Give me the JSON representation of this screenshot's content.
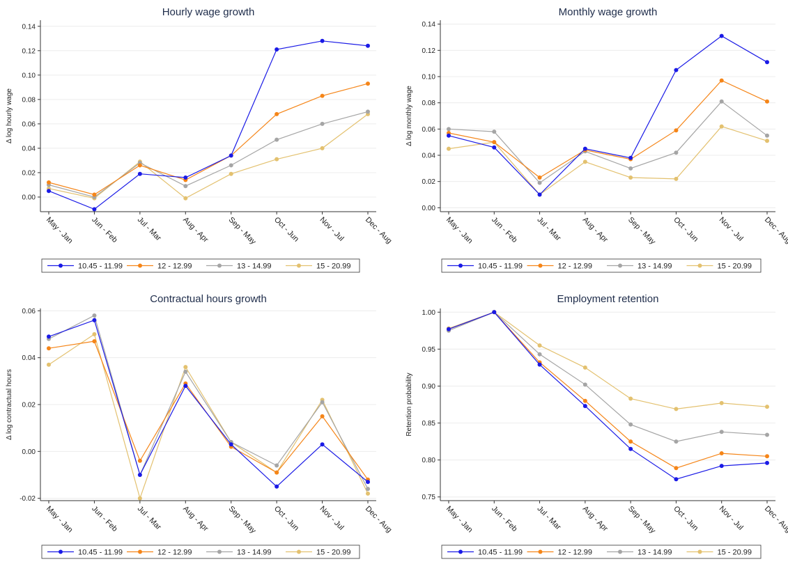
{
  "chart_data": [
    {
      "type": "line",
      "title": "Hourly wage growth",
      "xlabel": "",
      "ylabel": "Δ log hourly wage",
      "categories": [
        "May - Jan",
        "Jun - Feb",
        "Jul - Mar",
        "Aug - Apr",
        "Sep - May",
        "Oct - Jun",
        "Nov - Jul",
        "Dec - Aug"
      ],
      "ylim": [
        -0.012,
        0.145
      ],
      "yticks": [
        0.0,
        0.02,
        0.04,
        0.06,
        0.08,
        0.1,
        0.12,
        0.14
      ],
      "ytick_labels": [
        "0.00",
        "0.02",
        "0.04",
        "0.06",
        "0.08",
        "0.10",
        "0.12",
        "0.14"
      ],
      "grid": true,
      "legend": "bottom",
      "series": [
        {
          "name": "10.45 - 11.99",
          "color": "#1a1ae6",
          "values": [
            0.005,
            -0.01,
            0.019,
            0.016,
            0.034,
            0.121,
            0.128,
            0.124
          ]
        },
        {
          "name": "12 - 12.99",
          "color": "#f58518",
          "values": [
            0.012,
            0.002,
            0.026,
            0.014,
            0.034,
            0.068,
            0.083,
            0.093
          ]
        },
        {
          "name": "13 - 14.99",
          "color": "#a5a5a5",
          "values": [
            0.01,
            0.0,
            0.028,
            0.009,
            0.026,
            0.047,
            0.06,
            0.07
          ]
        },
        {
          "name": "15 - 20.99",
          "color": "#e3c16f",
          "values": [
            0.007,
            -0.001,
            0.029,
            -0.001,
            0.019,
            0.031,
            0.04,
            0.068
          ]
        }
      ]
    },
    {
      "type": "line",
      "title": "Monthly wage growth",
      "xlabel": "",
      "ylabel": "Δ log monthly wage",
      "categories": [
        "May - Jan",
        "Jun - Feb",
        "Jul - Mar",
        "Aug - Apr",
        "Sep - May",
        "Oct - Jun",
        "Nov - Jul",
        "Dec - Aug"
      ],
      "ylim": [
        -0.003,
        0.143
      ],
      "yticks": [
        0.0,
        0.02,
        0.04,
        0.06,
        0.08,
        0.1,
        0.12,
        0.14
      ],
      "ytick_labels": [
        "0.00",
        "0.02",
        "0.04",
        "0.06",
        "0.08",
        "0.10",
        "0.12",
        "0.14"
      ],
      "grid": true,
      "legend": "bottom",
      "series": [
        {
          "name": "10.45 - 11.99",
          "color": "#1a1ae6",
          "values": [
            0.055,
            0.046,
            0.01,
            0.045,
            0.038,
            0.105,
            0.131,
            0.111
          ]
        },
        {
          "name": "12 - 12.99",
          "color": "#f58518",
          "values": [
            0.057,
            0.05,
            0.023,
            0.044,
            0.037,
            0.059,
            0.097,
            0.081
          ]
        },
        {
          "name": "13 - 14.99",
          "color": "#a5a5a5",
          "values": [
            0.06,
            0.058,
            0.019,
            0.043,
            0.03,
            0.042,
            0.081,
            0.055
          ]
        },
        {
          "name": "15 - 20.99",
          "color": "#e3c16f",
          "values": [
            0.045,
            0.05,
            0.01,
            0.035,
            0.023,
            0.022,
            0.062,
            0.051
          ]
        }
      ]
    },
    {
      "type": "line",
      "title": "Contractual hours growth",
      "xlabel": "",
      "ylabel": "Δ log contractual hours",
      "categories": [
        "May - Jan",
        "Jun - Feb",
        "Jul - Mar",
        "Aug - Apr",
        "Sep - May",
        "Oct - Jun",
        "Nov - Jul",
        "Dec - Aug"
      ],
      "ylim": [
        -0.021,
        0.061
      ],
      "yticks": [
        -0.02,
        0.0,
        0.02,
        0.04,
        0.06
      ],
      "ytick_labels": [
        "-0.02",
        "0.00",
        "0.02",
        "0.04",
        "0.06"
      ],
      "grid": true,
      "legend": "bottom",
      "series": [
        {
          "name": "10.45 - 11.99",
          "color": "#1a1ae6",
          "values": [
            0.049,
            0.056,
            -0.01,
            0.028,
            0.003,
            -0.015,
            0.003,
            -0.013
          ]
        },
        {
          "name": "12 - 12.99",
          "color": "#f58518",
          "values": [
            0.044,
            0.047,
            -0.004,
            0.029,
            0.002,
            -0.009,
            0.015,
            -0.012
          ]
        },
        {
          "name": "13 - 14.99",
          "color": "#a5a5a5",
          "values": [
            0.048,
            0.058,
            -0.01,
            0.034,
            0.004,
            -0.006,
            0.021,
            -0.016
          ]
        },
        {
          "name": "15 - 20.99",
          "color": "#e3c16f",
          "values": [
            0.037,
            0.05,
            -0.02,
            0.036,
            0.004,
            -0.009,
            0.022,
            -0.018
          ]
        }
      ]
    },
    {
      "type": "line",
      "title": "Employment retention",
      "xlabel": "",
      "ylabel": "Retention probability",
      "categories": [
        "May - Jan",
        "Jun - Feb",
        "Jul - Mar",
        "Aug - Apr",
        "Sep - May",
        "Oct - Jun",
        "Nov - Jul",
        "Dec - Aug"
      ],
      "ylim": [
        0.745,
        1.005
      ],
      "yticks": [
        0.75,
        0.8,
        0.85,
        0.9,
        0.95,
        1.0
      ],
      "ytick_labels": [
        "0.75",
        "0.80",
        "0.85",
        "0.90",
        "0.95",
        "1.00"
      ],
      "grid": true,
      "legend": "bottom",
      "series": [
        {
          "name": "10.45 - 11.99",
          "color": "#1a1ae6",
          "values": [
            0.977,
            1.0,
            0.929,
            0.873,
            0.815,
            0.774,
            0.792,
            0.796
          ]
        },
        {
          "name": "12 - 12.99",
          "color": "#f58518",
          "values": [
            0.977,
            1.0,
            0.932,
            0.88,
            0.825,
            0.789,
            0.809,
            0.805
          ]
        },
        {
          "name": "13 - 14.99",
          "color": "#a5a5a5",
          "values": [
            0.975,
            1.0,
            0.943,
            0.902,
            0.848,
            0.825,
            0.838,
            0.834
          ]
        },
        {
          "name": "15 - 20.99",
          "color": "#e3c16f",
          "values": [
            0.978,
            1.0,
            0.955,
            0.925,
            0.883,
            0.869,
            0.877,
            0.872
          ]
        }
      ]
    }
  ]
}
